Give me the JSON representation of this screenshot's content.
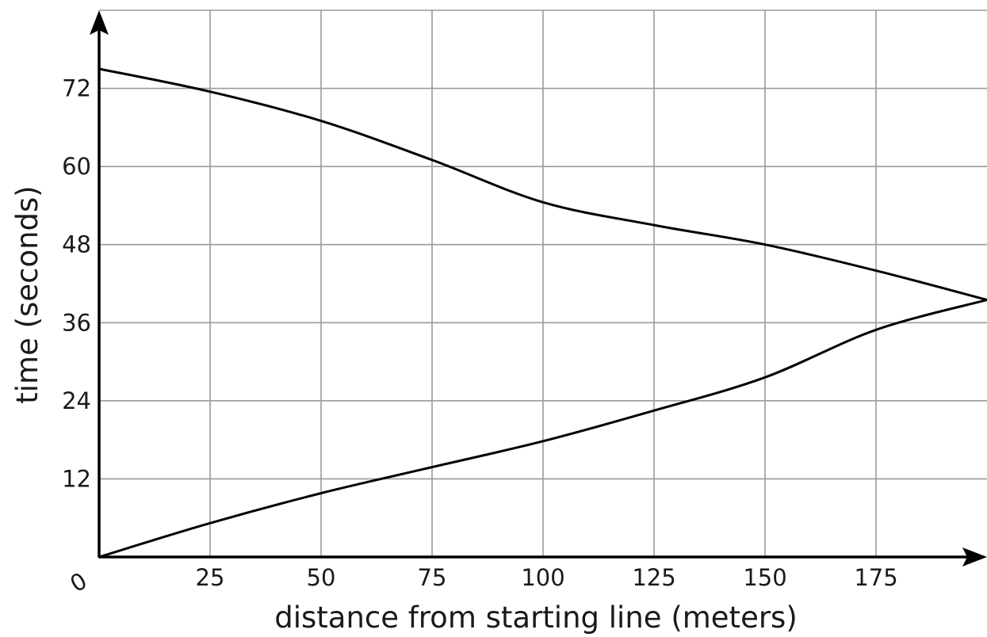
{
  "chart_data": {
    "type": "line",
    "title": "",
    "xlabel": "distance from starting line (meters)",
    "ylabel": "time (seconds)",
    "xlim": [
      0,
      200
    ],
    "ylim": [
      0,
      84
    ],
    "origin_label": "0",
    "x_ticks": [
      25,
      50,
      75,
      100,
      125,
      150,
      175
    ],
    "y_ticks": [
      12,
      24,
      36,
      48,
      60,
      72
    ],
    "grid": true,
    "legend": "none",
    "series": [
      {
        "x": [
          0,
          25,
          50,
          75,
          100,
          125,
          150,
          175,
          200
        ],
        "y": [
          75,
          71.5,
          67,
          61,
          54.5,
          51,
          48,
          44,
          39.5
        ]
      },
      {
        "x": [
          0,
          25,
          50,
          75,
          100,
          125,
          150,
          175,
          200
        ],
        "y": [
          0,
          5.2,
          9.8,
          13.8,
          17.8,
          22.5,
          27.6,
          34.9,
          39.5
        ]
      }
    ],
    "colors": {
      "series": "#000000",
      "grid": "#9a9a9a",
      "axis": "#000000"
    }
  }
}
